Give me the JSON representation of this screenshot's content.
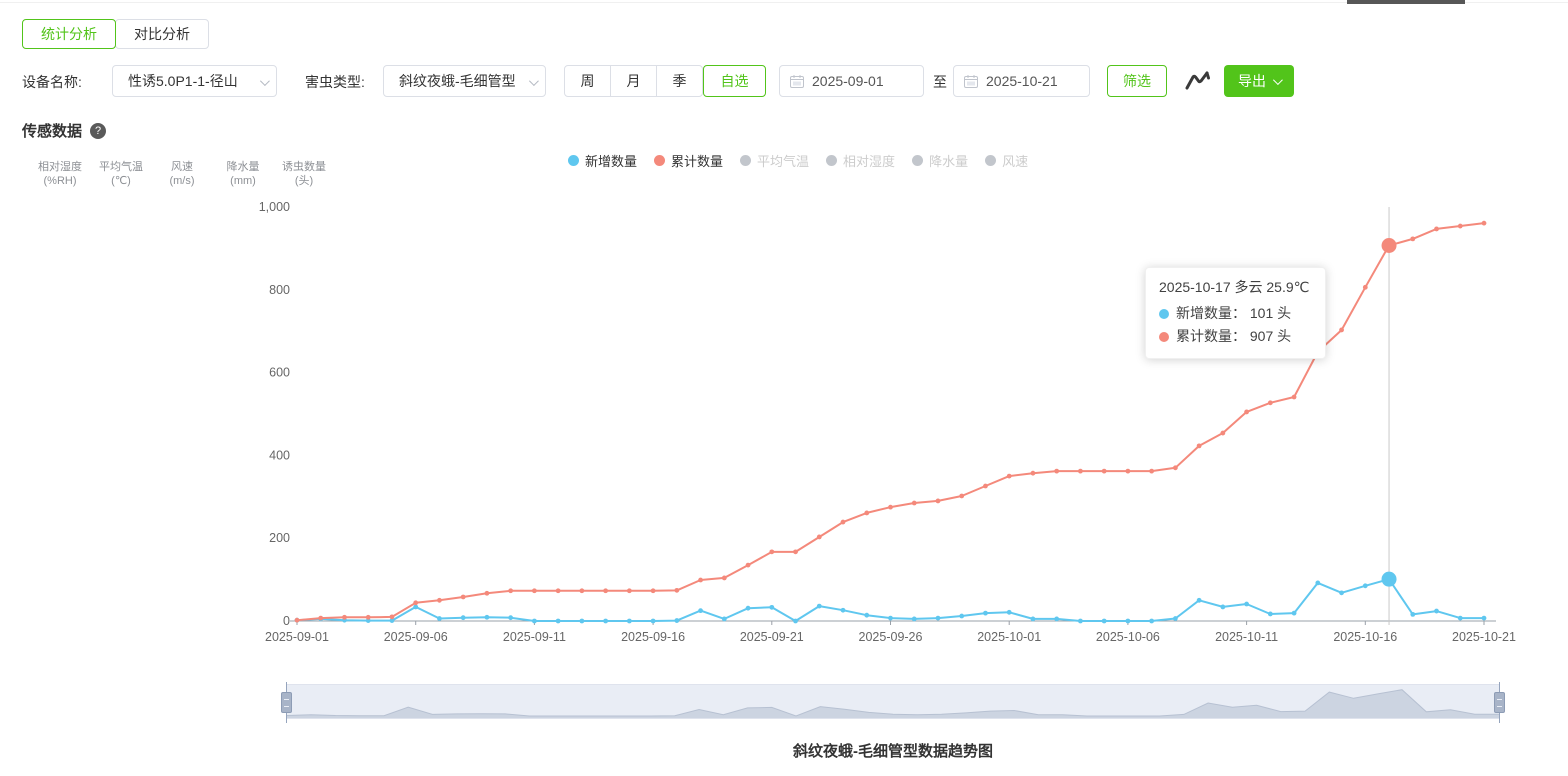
{
  "page": {
    "tabs": [
      {
        "label": "统计分析",
        "active": true
      },
      {
        "label": "对比分析",
        "active": false
      }
    ],
    "filters": {
      "device_label": "设备名称:",
      "device_value": "性诱5.0P1-1-径山",
      "pest_label": "害虫类型:",
      "pest_value": "斜纹夜蛾-毛细管型",
      "period_options": [
        "周",
        "月",
        "季"
      ],
      "period_custom": "自选",
      "date_start": "2025-09-01",
      "date_to_label": "至",
      "date_end": "2025-10-21",
      "filter_button": "筛选",
      "export_button": "导出"
    },
    "section_title": "传感数据",
    "help_glyph": "?",
    "axis_headers": [
      {
        "line1": "相对湿度",
        "line2": "(%RH)"
      },
      {
        "line1": "平均气温",
        "line2": "(℃)"
      },
      {
        "line1": "风速",
        "line2": "(m/s)"
      },
      {
        "line1": "降水量",
        "line2": "(mm)"
      },
      {
        "line1": "诱虫数量",
        "line2": "(头)"
      }
    ],
    "footer_title": "斜纹夜蛾-毛细管型数据趋势图"
  },
  "colors": {
    "accent_green": "#52c41a",
    "series_new": "#5fc7ef",
    "series_cumulative": "#f4897b",
    "inactive_gray": "#c2c6cc",
    "axis_text": "#666666",
    "axis_line": "#9aa0a8",
    "crosshair": "#c9c9c9"
  },
  "legend": [
    {
      "label": "新增数量",
      "color": "#5fc7ef",
      "active": true
    },
    {
      "label": "累计数量",
      "color": "#f4897b",
      "active": true
    },
    {
      "label": "平均气温",
      "color": "#c2c6cc",
      "active": false
    },
    {
      "label": "相对湿度",
      "color": "#c2c6cc",
      "active": false
    },
    {
      "label": "降水量",
      "color": "#c2c6cc",
      "active": false
    },
    {
      "label": "风速",
      "color": "#c2c6cc",
      "active": false
    }
  ],
  "tooltip": {
    "header": "2025-10-17 多云 25.9℃",
    "items": [
      {
        "label": "新增数量：",
        "value": "101 头",
        "color": "#5fc7ef"
      },
      {
        "label": "累计数量：",
        "value": "907 头",
        "color": "#f4897b"
      }
    ]
  },
  "chart_data": {
    "type": "line",
    "title": "斜纹夜蛾-毛细管型数据趋势图",
    "xlabel": "",
    "ylabel": "诱虫数量(头)",
    "ylim": [
      0,
      1000
    ],
    "grid": false,
    "legend_position": "top",
    "x": [
      "2025-09-01",
      "2025-09-02",
      "2025-09-03",
      "2025-09-04",
      "2025-09-05",
      "2025-09-06",
      "2025-09-07",
      "2025-09-08",
      "2025-09-09",
      "2025-09-10",
      "2025-09-11",
      "2025-09-12",
      "2025-09-13",
      "2025-09-14",
      "2025-09-15",
      "2025-09-16",
      "2025-09-17",
      "2025-09-18",
      "2025-09-19",
      "2025-09-20",
      "2025-09-21",
      "2025-09-22",
      "2025-09-23",
      "2025-09-24",
      "2025-09-25",
      "2025-09-26",
      "2025-09-27",
      "2025-09-28",
      "2025-09-29",
      "2025-09-30",
      "2025-10-01",
      "2025-10-02",
      "2025-10-03",
      "2025-10-04",
      "2025-10-05",
      "2025-10-06",
      "2025-10-07",
      "2025-10-08",
      "2025-10-09",
      "2025-10-10",
      "2025-10-11",
      "2025-10-12",
      "2025-10-13",
      "2025-10-14",
      "2025-10-15",
      "2025-10-16",
      "2025-10-17",
      "2025-10-18",
      "2025-10-19",
      "2025-10-20",
      "2025-10-21"
    ],
    "x_tick_labels": [
      "2025-09-01",
      "2025-09-06",
      "2025-09-11",
      "2025-09-16",
      "2025-09-21",
      "2025-09-26",
      "2025-10-01",
      "2025-10-06",
      "2025-10-11",
      "2025-10-16",
      "2025-10-21"
    ],
    "x_tick_indices": [
      0,
      5,
      10,
      15,
      20,
      25,
      30,
      35,
      40,
      45,
      50
    ],
    "y_ticks": [
      0,
      200,
      400,
      600,
      800,
      1000
    ],
    "y_tick_labels": [
      "0",
      "200",
      "400",
      "600",
      "800",
      "1,000"
    ],
    "highlight_index": 46,
    "series": [
      {
        "name": "新增数量",
        "color": "#5fc7ef",
        "values": [
          2,
          5,
          2,
          1,
          1,
          34,
          6,
          8,
          9,
          8,
          0,
          0,
          0,
          0,
          0,
          0,
          1,
          25,
          5,
          31,
          33,
          0,
          36,
          26,
          14,
          7,
          5,
          7,
          12,
          19,
          21,
          5,
          5,
          0,
          0,
          0,
          0,
          6,
          50,
          34,
          41,
          17,
          19,
          92,
          68,
          85,
          101,
          16,
          24,
          7,
          7
        ]
      },
      {
        "name": "累计数量",
        "color": "#f4897b",
        "values": [
          2,
          7,
          9,
          9,
          10,
          44,
          50,
          58,
          67,
          73,
          73,
          73,
          73,
          73,
          73,
          73,
          74,
          99,
          104,
          135,
          167,
          167,
          203,
          239,
          261,
          275,
          285,
          290,
          302,
          326,
          350,
          357,
          362,
          362,
          362,
          362,
          362,
          370,
          423,
          454,
          505,
          527,
          541,
          650,
          703,
          806,
          907,
          923,
          947,
          954,
          961
        ]
      }
    ]
  }
}
